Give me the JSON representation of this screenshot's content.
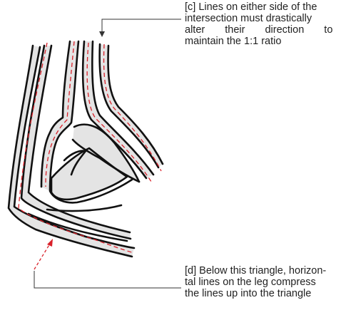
{
  "annotations": {
    "c": {
      "lines": [
        "[c] Lines on either side of the",
        "intersection must drastically",
        "alter their direction to",
        "maintain the 1:1 ratio"
      ]
    },
    "d": {
      "lines": [
        "[d] Below this triangle, horizon-",
        "tal lines on the leg compress",
        "the lines up into the triangle"
      ]
    }
  },
  "colors": {
    "stroke": "#111111",
    "fill": "#e4e4e4",
    "guide": "#d9212a",
    "leader": "#333333"
  }
}
